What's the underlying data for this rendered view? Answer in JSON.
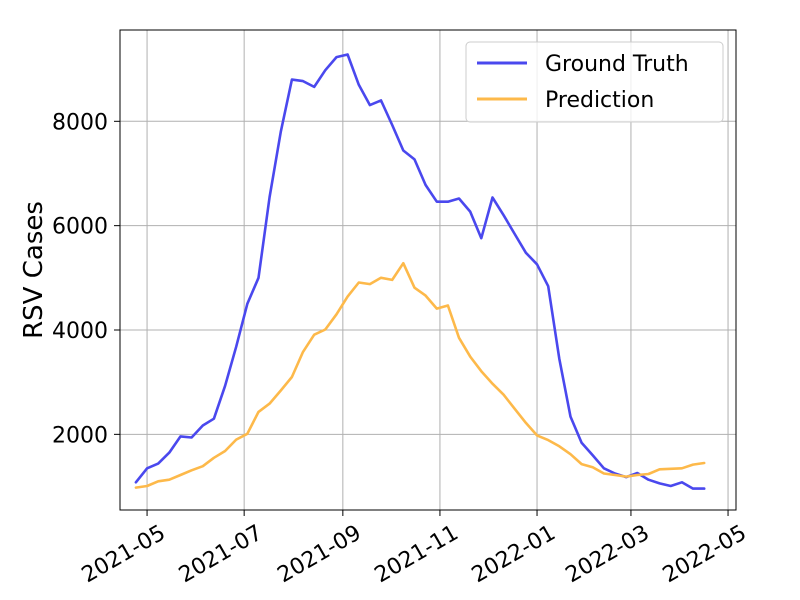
{
  "chart_data": {
    "type": "line",
    "title": "",
    "xlabel": "",
    "ylabel": "RSV Cases",
    "grid": true,
    "legend_position": "top-right",
    "xlim": [
      "2021-04-14",
      "2022-05-06"
    ],
    "ylim": [
      550,
      9750
    ],
    "x_ticks": [
      {
        "date": "2021-05-01",
        "label": "2021-05"
      },
      {
        "date": "2021-07-01",
        "label": "2021-07"
      },
      {
        "date": "2021-09-01",
        "label": "2021-09"
      },
      {
        "date": "2021-11-01",
        "label": "2021-11"
      },
      {
        "date": "2022-01-01",
        "label": "2022-01"
      },
      {
        "date": "2022-03-01",
        "label": "2022-03"
      },
      {
        "date": "2022-05-01",
        "label": "2022-05"
      }
    ],
    "y_ticks": [
      {
        "value": 2000,
        "label": "2000"
      },
      {
        "value": 4000,
        "label": "4000"
      },
      {
        "value": 6000,
        "label": "6000"
      },
      {
        "value": 8000,
        "label": "8000"
      }
    ],
    "x": [
      "2021-04-24",
      "2021-05-01",
      "2021-05-08",
      "2021-05-15",
      "2021-05-22",
      "2021-05-29",
      "2021-06-05",
      "2021-06-12",
      "2021-06-19",
      "2021-06-26",
      "2021-07-03",
      "2021-07-10",
      "2021-07-17",
      "2021-07-24",
      "2021-07-31",
      "2021-08-07",
      "2021-08-14",
      "2021-08-21",
      "2021-08-28",
      "2021-09-04",
      "2021-09-11",
      "2021-09-18",
      "2021-09-25",
      "2021-10-02",
      "2021-10-09",
      "2021-10-16",
      "2021-10-23",
      "2021-10-30",
      "2021-11-06",
      "2021-11-13",
      "2021-11-20",
      "2021-11-27",
      "2021-12-04",
      "2021-12-11",
      "2021-12-18",
      "2021-12-25",
      "2022-01-01",
      "2022-01-08",
      "2022-01-15",
      "2022-01-22",
      "2022-01-29",
      "2022-02-05",
      "2022-02-12",
      "2022-02-19",
      "2022-02-26",
      "2022-03-05",
      "2022-03-12",
      "2022-03-19",
      "2022-03-26",
      "2022-04-02",
      "2022-04-09",
      "2022-04-16"
    ],
    "series": [
      {
        "name": "Ground Truth",
        "color": "#4a48ee",
        "values": [
          1080,
          1350,
          1440,
          1650,
          1960,
          1940,
          2170,
          2300,
          2930,
          3680,
          4500,
          5000,
          6550,
          7800,
          8800,
          8770,
          8660,
          8980,
          9230,
          9280,
          8700,
          8310,
          8400,
          7930,
          7440,
          7270,
          6780,
          6460,
          6460,
          6520,
          6270,
          5760,
          6540,
          6200,
          5840,
          5480,
          5260,
          4840,
          3450,
          2340,
          1840,
          1600,
          1350,
          1250,
          1180,
          1260,
          1130,
          1060,
          1010,
          1080,
          960,
          960
        ]
      },
      {
        "name": "Prediction",
        "color": "#fdb94a",
        "values": [
          980,
          1010,
          1100,
          1130,
          1220,
          1310,
          1390,
          1550,
          1680,
          1900,
          2010,
          2430,
          2590,
          2840,
          3100,
          3580,
          3910,
          4010,
          4300,
          4640,
          4910,
          4880,
          5000,
          4960,
          5280,
          4810,
          4660,
          4410,
          4470,
          3850,
          3490,
          3210,
          2970,
          2760,
          2490,
          2220,
          1980,
          1890,
          1770,
          1620,
          1430,
          1370,
          1250,
          1220,
          1190,
          1220,
          1240,
          1330,
          1340,
          1350,
          1420,
          1450
        ]
      }
    ]
  }
}
